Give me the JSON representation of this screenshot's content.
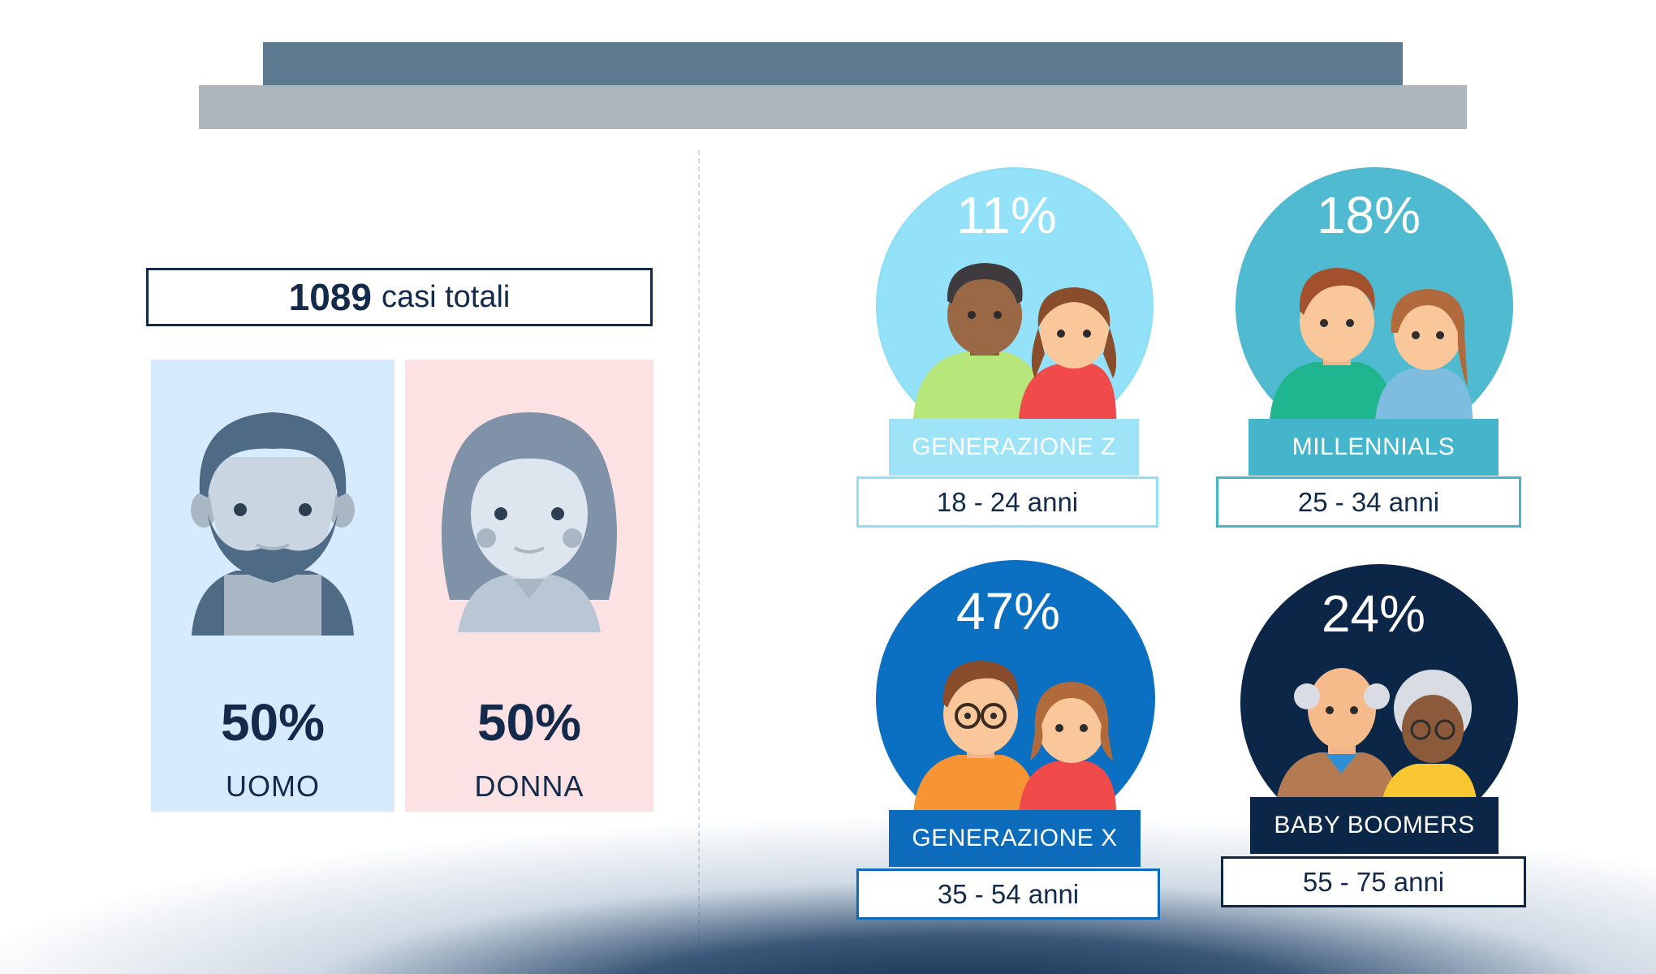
{
  "total": {
    "count": "1089",
    "label": "casi totali"
  },
  "gender": [
    {
      "pct": "50%",
      "label": "UOMO"
    },
    {
      "pct": "50%",
      "label": "DONNA"
    }
  ],
  "generations": [
    {
      "pct": "11%",
      "name": "GENERAZIONE Z",
      "age": "18 - 24 anni",
      "color": "#94e2f9",
      "label_color": "#9fe4f6",
      "border": "#8fe0f5"
    },
    {
      "pct": "18%",
      "name": "MILLENNIALS",
      "age": "25 - 34 anni",
      "color": "#4fbad0",
      "label_color": "#45b5cc",
      "border": "#45b5cc"
    },
    {
      "pct": "47%",
      "name": "GENERAZIONE X",
      "age": "35 - 54 anni",
      "color": "#0c70c2",
      "label_color": "#0c6cbb",
      "border": "#0c6cbb"
    },
    {
      "pct": "24%",
      "name": "BABY BOOMERS",
      "age": "55 - 75 anni",
      "color": "#0c2648",
      "label_color": "#0c2648",
      "border": "#0c2648"
    }
  ]
}
